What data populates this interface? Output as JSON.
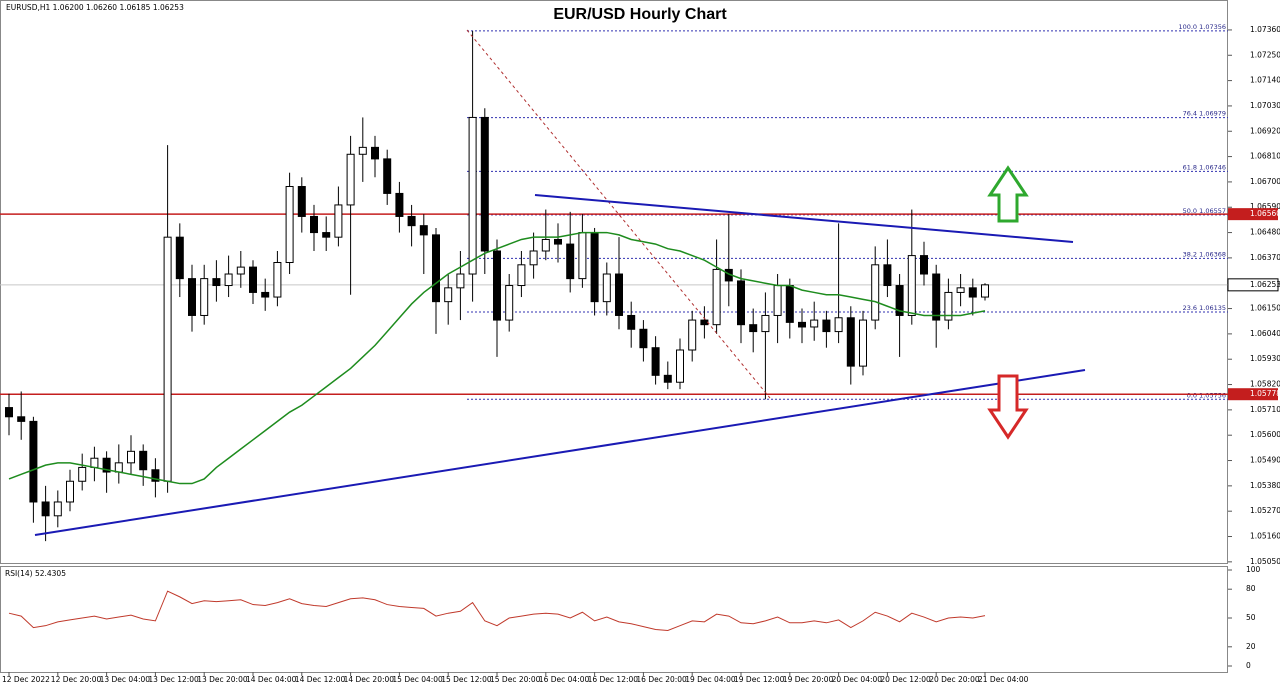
{
  "chart_data": {
    "type": "candlestick",
    "title": "EUR/USD Hourly Chart",
    "symbol_label": "EURUSD,H1  1.06200 1.06260 1.06185 1.06253",
    "ylim": [
      1.05045,
      1.0749
    ],
    "yticks": [
      {
        "value": 1.0736,
        "label": "1.07360"
      },
      {
        "value": 1.0725,
        "label": "1.07250"
      },
      {
        "value": 1.0714,
        "label": "1.07140"
      },
      {
        "value": 1.0703,
        "label": "1.07030"
      },
      {
        "value": 1.0692,
        "label": "1.06920"
      },
      {
        "value": 1.0681,
        "label": "1.06810"
      },
      {
        "value": 1.067,
        "label": "1.06700"
      },
      {
        "value": 1.0659,
        "label": "1.06590"
      },
      {
        "value": 1.0648,
        "label": "1.06480"
      },
      {
        "value": 1.0637,
        "label": "1.06370"
      },
      {
        "value": 1.0615,
        "label": "1.06150"
      },
      {
        "value": 1.0604,
        "label": "1.06040"
      },
      {
        "value": 1.0593,
        "label": "1.05930"
      },
      {
        "value": 1.0582,
        "label": "1.05820"
      },
      {
        "value": 1.0571,
        "label": "1.05710"
      },
      {
        "value": 1.056,
        "label": "1.05600"
      },
      {
        "value": 1.0549,
        "label": "1.05490"
      },
      {
        "value": 1.0538,
        "label": "1.05380"
      },
      {
        "value": 1.0527,
        "label": "1.05270"
      },
      {
        "value": 1.0516,
        "label": "1.05160"
      },
      {
        "value": 1.0505,
        "label": "1.05050"
      }
    ],
    "x_labels": [
      "12 Dec 2022",
      "12 Dec 20:00",
      "13 Dec 04:00",
      "13 Dec 12:00",
      "13 Dec 20:00",
      "14 Dec 04:00",
      "14 Dec 12:00",
      "14 Dec 20:00",
      "15 Dec 04:00",
      "15 Dec 12:00",
      "15 Dec 20:00",
      "16 Dec 04:00",
      "16 Dec 12:00",
      "16 Dec 20:00",
      "19 Dec 04:00",
      "19 Dec 12:00",
      "19 Dec 20:00",
      "20 Dec 04:00",
      "20 Dec 12:00",
      "20 Dec 20:00",
      "21 Dec 04:00"
    ],
    "candles": [
      [
        1.0572,
        1.0578,
        1.056,
        1.0568
      ],
      [
        1.0568,
        1.0579,
        1.0558,
        1.0566
      ],
      [
        1.0566,
        1.0568,
        1.0522,
        1.0531
      ],
      [
        1.0531,
        1.0538,
        1.0514,
        1.0525
      ],
      [
        1.0525,
        1.0536,
        1.052,
        1.0531
      ],
      [
        1.0531,
        1.0545,
        1.0527,
        1.054
      ],
      [
        1.054,
        1.0552,
        1.0536,
        1.0546
      ],
      [
        1.0546,
        1.0555,
        1.054,
        1.055
      ],
      [
        1.055,
        1.0553,
        1.0535,
        1.0544
      ],
      [
        1.0544,
        1.0556,
        1.0539,
        1.0548
      ],
      [
        1.0548,
        1.056,
        1.0543,
        1.0553
      ],
      [
        1.0553,
        1.0556,
        1.0538,
        1.0545
      ],
      [
        1.0545,
        1.055,
        1.0533,
        1.054
      ],
      [
        1.054,
        1.0686,
        1.0535,
        1.0646
      ],
      [
        1.0646,
        1.0652,
        1.062,
        1.0628
      ],
      [
        1.0628,
        1.0634,
        1.0605,
        1.0612
      ],
      [
        1.0612,
        1.0634,
        1.0608,
        1.0628
      ],
      [
        1.0628,
        1.0636,
        1.0618,
        1.0625
      ],
      [
        1.0625,
        1.0638,
        1.062,
        1.063
      ],
      [
        1.063,
        1.064,
        1.0624,
        1.0633
      ],
      [
        1.0633,
        1.0636,
        1.0617,
        1.0622
      ],
      [
        1.0622,
        1.0628,
        1.0614,
        1.062
      ],
      [
        1.062,
        1.064,
        1.0616,
        1.0635
      ],
      [
        1.0635,
        1.0674,
        1.063,
        1.0668
      ],
      [
        1.0668,
        1.0672,
        1.0648,
        1.0655
      ],
      [
        1.0655,
        1.066,
        1.064,
        1.0648
      ],
      [
        1.0648,
        1.0655,
        1.064,
        1.0646
      ],
      [
        1.0646,
        1.0668,
        1.0642,
        1.066
      ],
      [
        1.066,
        1.069,
        1.0621,
        1.0682
      ],
      [
        1.0682,
        1.0698,
        1.067,
        1.0685
      ],
      [
        1.0685,
        1.069,
        1.0672,
        1.068
      ],
      [
        1.068,
        1.0684,
        1.066,
        1.0665
      ],
      [
        1.0665,
        1.067,
        1.0648,
        1.0655
      ],
      [
        1.0655,
        1.066,
        1.0642,
        1.0651
      ],
      [
        1.0651,
        1.0656,
        1.063,
        1.0647
      ],
      [
        1.0647,
        1.065,
        1.0604,
        1.0618
      ],
      [
        1.0618,
        1.063,
        1.0608,
        1.0624
      ],
      [
        1.0624,
        1.064,
        1.061,
        1.063
      ],
      [
        1.063,
        1.07356,
        1.0618,
        1.0698
      ],
      [
        1.0698,
        1.0702,
        1.063,
        1.064
      ],
      [
        1.064,
        1.0645,
        1.0594,
        1.061
      ],
      [
        1.061,
        1.063,
        1.0605,
        1.0625
      ],
      [
        1.0625,
        1.064,
        1.062,
        1.0634
      ],
      [
        1.0634,
        1.0648,
        1.0628,
        1.064
      ],
      [
        1.064,
        1.0658,
        1.0636,
        1.0645
      ],
      [
        1.0645,
        1.0652,
        1.0635,
        1.0643
      ],
      [
        1.0643,
        1.0657,
        1.0622,
        1.0628
      ],
      [
        1.0628,
        1.0656,
        1.0624,
        1.0648
      ],
      [
        1.0648,
        1.065,
        1.0612,
        1.0618
      ],
      [
        1.0618,
        1.0635,
        1.0612,
        1.063
      ],
      [
        1.063,
        1.0646,
        1.0606,
        1.0612
      ],
      [
        1.0612,
        1.0618,
        1.0598,
        1.0606
      ],
      [
        1.0606,
        1.061,
        1.0592,
        1.0598
      ],
      [
        1.0598,
        1.0603,
        1.0582,
        1.0586
      ],
      [
        1.0586,
        1.0592,
        1.058,
        1.0583
      ],
      [
        1.0583,
        1.0602,
        1.058,
        1.0597
      ],
      [
        1.0597,
        1.0614,
        1.0592,
        1.061
      ],
      [
        1.061,
        1.0616,
        1.0602,
        1.0608
      ],
      [
        1.0608,
        1.0645,
        1.0604,
        1.0632
      ],
      [
        1.0632,
        1.0656,
        1.0616,
        1.0627
      ],
      [
        1.0627,
        1.0632,
        1.06,
        1.0608
      ],
      [
        1.0608,
        1.0615,
        1.0596,
        1.0605
      ],
      [
        1.0605,
        1.0622,
        1.05756,
        1.0612
      ],
      [
        1.0612,
        1.063,
        1.06,
        1.0625
      ],
      [
        1.0625,
        1.0628,
        1.0602,
        1.0609
      ],
      [
        1.0609,
        1.0615,
        1.06,
        1.0607
      ],
      [
        1.0607,
        1.0618,
        1.0601,
        1.061
      ],
      [
        1.061,
        1.0614,
        1.0598,
        1.0605
      ],
      [
        1.0605,
        1.0652,
        1.06,
        1.0611
      ],
      [
        1.0611,
        1.0616,
        1.0582,
        1.059
      ],
      [
        1.059,
        1.0614,
        1.0586,
        1.061
      ],
      [
        1.061,
        1.0642,
        1.0606,
        1.0634
      ],
      [
        1.0634,
        1.0645,
        1.062,
        1.0625
      ],
      [
        1.0625,
        1.063,
        1.0594,
        1.0612
      ],
      [
        1.0612,
        1.0658,
        1.0608,
        1.0638
      ],
      [
        1.0638,
        1.0644,
        1.0625,
        1.063
      ],
      [
        1.063,
        1.0634,
        1.0598,
        1.061
      ],
      [
        1.061,
        1.0628,
        1.0606,
        1.0622
      ],
      [
        1.0622,
        1.063,
        1.0616,
        1.0624
      ],
      [
        1.0624,
        1.0628,
        1.0612,
        1.062
      ],
      [
        1.062,
        1.0626,
        1.06185,
        1.06253
      ]
    ],
    "ma": {
      "color": "#1e8c1e",
      "values": [
        1.0541,
        1.0543,
        1.0545,
        1.0547,
        1.0548,
        1.0548,
        1.0547,
        1.0546,
        1.0545,
        1.0544,
        1.0543,
        1.0542,
        1.0541,
        1.054,
        1.0539,
        1.0539,
        1.0541,
        1.0546,
        1.055,
        1.0554,
        1.0558,
        1.0562,
        1.0566,
        1.057,
        1.0573,
        1.0577,
        1.0581,
        1.0585,
        1.0589,
        1.0594,
        1.0599,
        1.0605,
        1.0611,
        1.0617,
        1.0622,
        1.0626,
        1.063,
        1.0633,
        1.0636,
        1.0639,
        1.0641,
        1.0643,
        1.0645,
        1.0646,
        1.0646,
        1.0646,
        1.0647,
        1.0648,
        1.0648,
        1.0648,
        1.0647,
        1.0645,
        1.0644,
        1.0643,
        1.0641,
        1.064,
        1.0638,
        1.0636,
        1.0633,
        1.063,
        1.0628,
        1.0627,
        1.0626,
        1.0625,
        1.0625,
        1.0623,
        1.0622,
        1.0621,
        1.0621,
        1.062,
        1.0619,
        1.0618,
        1.0616,
        1.0614,
        1.0613,
        1.0612,
        1.0612,
        1.0612,
        1.0612,
        1.0613,
        1.0614
      ]
    },
    "fib_levels": [
      {
        "value": 1.07356,
        "label": "100.0 1.07356"
      },
      {
        "value": 1.06979,
        "label": "76.4 1.06979"
      },
      {
        "value": 1.06746,
        "label": "61.8 1.06746"
      },
      {
        "value": 1.06557,
        "label": "50.0 1.06557"
      },
      {
        "value": 1.06368,
        "label": "38.2 1.06368"
      },
      {
        "value": 1.06135,
        "label": "23.6 1.06135"
      },
      {
        "value": 1.05756,
        "label": "0.0 1.05756"
      }
    ],
    "levels": [
      {
        "value": 1.0656,
        "label": "1.06560"
      },
      {
        "value": 1.05778,
        "label": "1.05778"
      }
    ],
    "last_price": {
      "value": 1.06253,
      "label": "1.06253"
    },
    "rsi": {
      "label": "RSI(14) 52.4305",
      "color": "#c0392b",
      "ylim": [
        0,
        100
      ],
      "yticks": [
        100,
        80,
        50,
        20,
        0
      ],
      "values": [
        55,
        52,
        40,
        42,
        46,
        48,
        50,
        52,
        49,
        51,
        53,
        49,
        47,
        78,
        72,
        65,
        68,
        67,
        68,
        69,
        64,
        63,
        66,
        70,
        65,
        63,
        62,
        66,
        70,
        71,
        69,
        64,
        62,
        61,
        60,
        52,
        55,
        57,
        66,
        47,
        42,
        50,
        52,
        54,
        55,
        54,
        50,
        56,
        47,
        51,
        46,
        44,
        41,
        38,
        37,
        42,
        47,
        46,
        54,
        52,
        45,
        44,
        47,
        51,
        45,
        45,
        47,
        45,
        48,
        40,
        47,
        56,
        52,
        46,
        55,
        51,
        46,
        50,
        51,
        50,
        52.4305
      ]
    }
  }
}
